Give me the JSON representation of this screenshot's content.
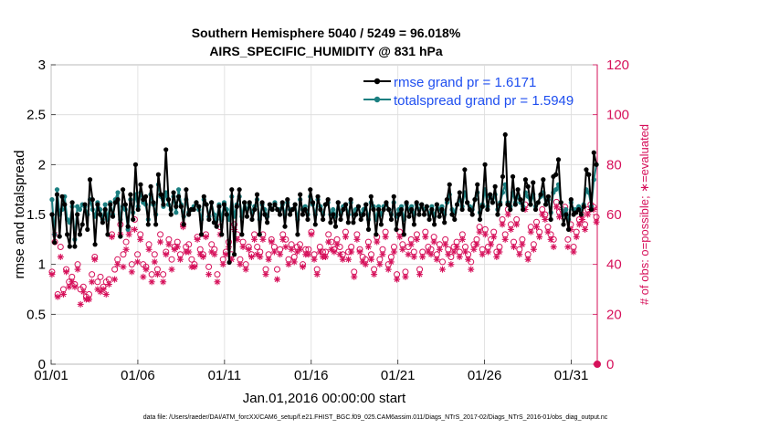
{
  "chart_data": {
    "type": "line",
    "title": "Southern Hemisphere 5040 / 5249 = 96.018%",
    "subtitle": "AIRS_SPECIFIC_HUMIDITY @ 831 hPa",
    "xlabel": "Jan.01,2016 00:00:00 start",
    "ylabel": "rmse and totalspread",
    "ylabel_right": "# of obs: o=possible; ∗=evaluated",
    "footnote": "data file: /Users/raeder/DAI/ATM_forcXX/CAM6_setup/f.e21.FHIST_BGC.f09_025.CAM6assim.011/Diags_NTrS_2017-02/Diags_NTrS_2016-01/obs_diag_output.nc",
    "xlim": [
      0,
      31.5
    ],
    "ylim": [
      0,
      3
    ],
    "ylim_right": [
      0,
      120
    ],
    "x_ticks": [
      0,
      5,
      10,
      15,
      20,
      25,
      30
    ],
    "x_tick_labels": [
      "01/01",
      "01/06",
      "01/11",
      "01/16",
      "01/21",
      "01/26",
      "01/31"
    ],
    "y_ticks": [
      0,
      0.5,
      1,
      1.5,
      2,
      2.5,
      3
    ],
    "y_tick_labels": [
      "0",
      "0.5",
      "1",
      "1.5",
      "2",
      "2.5",
      "3"
    ],
    "y_ticks_right": [
      0,
      20,
      40,
      60,
      80,
      100,
      120
    ],
    "y_tick_labels_right": [
      "0",
      "20",
      "40",
      "60",
      "80",
      "100",
      "120"
    ],
    "series": [
      {
        "name": "rmse grand pr = 1.6171",
        "color": "#000000",
        "values": [
          1.5,
          1.22,
          1.7,
          1.28,
          1.68,
          1.6,
          1.3,
          1.18,
          1.62,
          1.18,
          1.5,
          1.3,
          1.4,
          1.6,
          1.35,
          1.85,
          1.65,
          1.2,
          1.6,
          1.5,
          1.42,
          1.55,
          1.3,
          1.6,
          1.48,
          1.62,
          1.65,
          1.28,
          1.75,
          1.6,
          1.38,
          1.7,
          1.45,
          2.0,
          1.55,
          1.8,
          1.65,
          1.68,
          1.4,
          1.78,
          1.62,
          1.4,
          1.9,
          1.7,
          1.6,
          2.15,
          1.65,
          1.5,
          1.72,
          1.58,
          1.68,
          1.58,
          1.4,
          1.75,
          1.5,
          1.55,
          1.55,
          1.62,
          1.58,
          1.3,
          1.68,
          1.6,
          1.45,
          1.62,
          1.42,
          1.38,
          1.58,
          1.3,
          1.6,
          1.5,
          1.02,
          1.75,
          1.1,
          1.58,
          1.75,
          1.3,
          1.62,
          1.48,
          1.62,
          1.45,
          1.55,
          1.7,
          1.3,
          1.62,
          1.5,
          1.42,
          1.6,
          1.55,
          1.6,
          1.55,
          1.5,
          1.62,
          1.38,
          1.65,
          1.5,
          1.55,
          1.6,
          1.3,
          1.7,
          1.5,
          1.55,
          1.45,
          1.75,
          1.62,
          1.4,
          1.68,
          1.55,
          1.45,
          1.6,
          1.65,
          1.42,
          1.5,
          1.38,
          1.62,
          1.45,
          1.55,
          1.6,
          1.42,
          1.65,
          1.42,
          1.5,
          1.58,
          1.45,
          1.5,
          1.6,
          1.35,
          1.68,
          1.55,
          1.3,
          1.55,
          1.4,
          1.55,
          1.62,
          1.55,
          1.45,
          1.68,
          1.35,
          1.5,
          1.55,
          1.3,
          1.62,
          1.48,
          1.55,
          1.4,
          1.62,
          1.5,
          1.6,
          1.5,
          1.58,
          1.45,
          1.55,
          1.4,
          1.6,
          1.48,
          1.55,
          1.42,
          1.65,
          1.8,
          1.5,
          1.45,
          1.6,
          1.72,
          1.55,
          1.95,
          1.62,
          1.55,
          1.5,
          1.65,
          1.8,
          1.45,
          1.58,
          2.0,
          1.55,
          1.7,
          1.62,
          1.78,
          1.5,
          1.6,
          1.88,
          2.3,
          1.6,
          1.55,
          1.88,
          1.6,
          1.75,
          1.65,
          1.55,
          1.85,
          1.78,
          1.6,
          1.82,
          1.55,
          1.62,
          1.7,
          1.85,
          1.6,
          1.68,
          1.45,
          1.88,
          1.9,
          2.05,
          1.62,
          1.4,
          1.5,
          1.35,
          1.65,
          1.5,
          1.52,
          1.55,
          1.5,
          1.58,
          1.95,
          1.9,
          1.55,
          2.12,
          2.0
        ]
      },
      {
        "name": "totalspread grand pr = 1.5949",
        "color": "#1b7f81",
        "values": [
          1.65,
          1.3,
          1.75,
          1.5,
          1.55,
          1.68,
          1.45,
          1.42,
          1.58,
          1.25,
          1.58,
          1.55,
          1.6,
          1.58,
          1.5,
          1.65,
          1.55,
          1.48,
          1.62,
          1.55,
          1.45,
          1.6,
          1.45,
          1.62,
          1.5,
          1.65,
          1.72,
          1.45,
          1.58,
          1.55,
          1.35,
          1.65,
          1.52,
          1.7,
          1.58,
          1.72,
          1.62,
          1.6,
          1.45,
          1.7,
          1.6,
          1.5,
          1.8,
          1.68,
          1.58,
          1.72,
          1.6,
          1.55,
          1.68,
          1.52,
          1.75,
          1.6,
          1.48,
          1.65,
          1.52,
          1.55,
          1.58,
          1.62,
          1.55,
          1.45,
          1.65,
          1.6,
          1.48,
          1.62,
          1.5,
          1.45,
          1.6,
          1.45,
          1.62,
          1.55,
          1.45,
          1.68,
          1.48,
          1.6,
          1.68,
          1.48,
          1.62,
          1.55,
          1.6,
          1.52,
          1.58,
          1.65,
          1.45,
          1.6,
          1.55,
          1.48,
          1.6,
          1.55,
          1.62,
          1.55,
          1.55,
          1.6,
          1.5,
          1.62,
          1.55,
          1.55,
          1.6,
          1.45,
          1.65,
          1.55,
          1.58,
          1.5,
          1.68,
          1.6,
          1.5,
          1.65,
          1.58,
          1.5,
          1.6,
          1.62,
          1.5,
          1.55,
          1.48,
          1.62,
          1.5,
          1.58,
          1.6,
          1.5,
          1.62,
          1.5,
          1.55,
          1.58,
          1.5,
          1.55,
          1.6,
          1.45,
          1.62,
          1.58,
          1.45,
          1.58,
          1.5,
          1.58,
          1.6,
          1.55,
          1.5,
          1.62,
          1.48,
          1.55,
          1.58,
          1.45,
          1.6,
          1.55,
          1.58,
          1.5,
          1.6,
          1.55,
          1.6,
          1.55,
          1.58,
          1.5,
          1.58,
          1.48,
          1.6,
          1.55,
          1.58,
          1.5,
          1.62,
          1.7,
          1.55,
          1.52,
          1.6,
          1.65,
          1.58,
          1.72,
          1.62,
          1.58,
          1.55,
          1.65,
          1.72,
          1.52,
          1.6,
          1.75,
          1.58,
          1.68,
          1.62,
          1.7,
          1.55,
          1.62,
          1.72,
          1.8,
          1.62,
          1.58,
          1.72,
          1.62,
          1.68,
          1.62,
          1.58,
          1.72,
          1.68,
          1.6,
          1.7,
          1.58,
          1.62,
          1.68,
          1.72,
          1.6,
          1.65,
          1.52,
          1.72,
          1.75,
          1.8,
          1.62,
          1.5,
          1.55,
          1.45,
          1.62,
          1.55,
          1.55,
          1.58,
          1.55,
          1.6,
          1.75,
          1.72,
          1.58,
          1.85,
          2.0
        ]
      },
      {
        "name": "possible",
        "color": "#d6105a",
        "marker": "o",
        "axis": "right",
        "values": [
          37,
          49,
          28,
          47,
          30,
          38,
          33,
          35,
          32,
          40,
          30,
          31,
          27,
          28,
          36,
          43,
          33,
          35,
          31,
          33,
          34,
          52,
          38,
          42,
          56,
          44,
          49,
          54,
          40,
          58,
          44,
          52,
          40,
          39,
          48,
          36,
          44,
          38,
          52,
          36,
          45,
          50,
          42,
          47,
          49,
          44,
          56,
          47,
          48,
          42,
          40,
          51,
          46,
          44,
          52,
          39,
          48,
          46,
          36,
          55,
          42,
          45,
          49,
          44,
          56,
          52,
          42,
          49,
          40,
          47,
          44,
          52,
          47,
          45,
          52,
          38,
          44,
          50,
          47,
          38,
          46,
          52,
          50,
          42,
          48,
          43,
          47,
          48,
          40,
          46,
          46,
          53,
          44,
          38,
          47,
          45,
          45,
          52,
          49,
          46,
          50,
          47,
          44,
          53,
          45,
          47,
          37,
          52,
          46,
          43,
          42,
          49,
          44,
          38,
          51,
          42,
          46,
          53,
          40,
          43,
          47,
          36,
          53,
          48,
          37,
          47,
          50,
          45,
          52,
          38,
          45,
          53,
          47,
          46,
          51,
          44,
          48,
          41,
          50,
          46,
          43,
          47,
          49,
          45,
          52,
          47,
          44,
          41,
          48,
          50,
          55,
          46,
          54,
          47,
          50,
          53,
          45,
          47,
          58,
          52,
          62,
          56,
          49,
          58,
          46,
          50,
          64,
          44,
          55,
          48,
          57,
          53,
          62,
          60,
          55,
          52,
          50,
          65,
          61,
          62,
          63,
          50,
          56,
          47,
          53,
          58,
          60,
          56,
          62,
          64,
          63,
          59
        ]
      },
      {
        "name": "evaluated",
        "color": "#d6105a",
        "marker": "*",
        "axis": "right",
        "values": [
          36,
          52,
          27,
          43,
          28,
          37,
          31,
          33,
          31,
          38,
          24,
          29,
          26,
          26,
          33,
          42,
          30,
          29,
          30,
          28,
          32,
          51,
          34,
          40,
          52,
          39,
          46,
          52,
          37,
          54,
          41,
          50,
          35,
          38,
          46,
          33,
          41,
          36,
          49,
          33,
          44,
          48,
          38,
          46,
          47,
          42,
          55,
          45,
          45,
          39,
          39,
          50,
          44,
          43,
          51,
          36,
          45,
          44,
          33,
          52,
          40,
          44,
          47,
          42,
          54,
          50,
          40,
          47,
          38,
          46,
          43,
          50,
          44,
          43,
          50,
          36,
          42,
          49,
          45,
          34,
          44,
          50,
          47,
          40,
          46,
          41,
          45,
          46,
          39,
          44,
          44,
          52,
          42,
          36,
          45,
          43,
          43,
          49,
          46,
          45,
          48,
          44,
          42,
          51,
          42,
          45,
          35,
          50,
          45,
          41,
          40,
          47,
          42,
          36,
          49,
          40,
          44,
          51,
          38,
          41,
          45,
          34,
          51,
          46,
          35,
          44,
          48,
          43,
          50,
          36,
          43,
          51,
          45,
          44,
          49,
          42,
          46,
          38,
          48,
          44,
          40,
          45,
          47,
          43,
          50,
          45,
          42,
          38,
          46,
          48,
          53,
          44,
          52,
          45,
          48,
          51,
          43,
          45,
          56,
          50,
          60,
          54,
          47,
          56,
          44,
          48,
          62,
          42,
          53,
          46,
          55,
          51,
          60,
          58,
          53,
          50,
          47,
          63,
          59,
          60,
          61,
          47,
          54,
          45,
          51,
          56,
          58,
          54,
          60,
          62,
          62,
          57
        ]
      }
    ]
  }
}
